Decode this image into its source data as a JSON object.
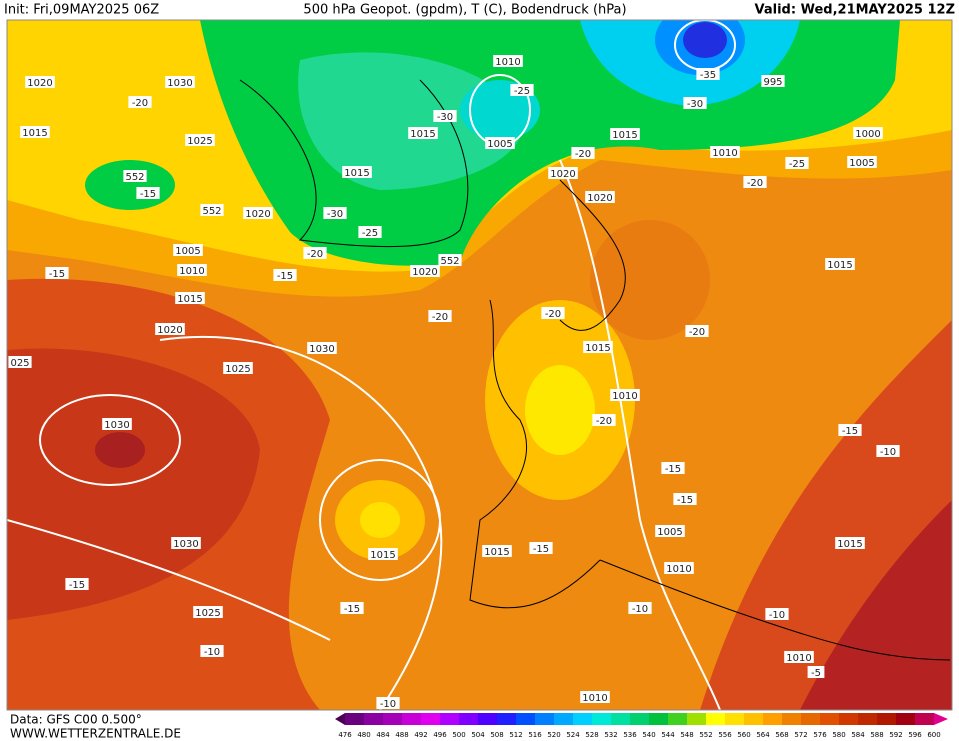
{
  "header": {
    "init": "Init: Fri,09MAY2025 06Z",
    "title": "500 hPa Geopot. (gpdm), T (C), Bodendruck (hPa)",
    "valid": "Valid: Wed,21MAY2025 12Z"
  },
  "map": {
    "labels": [
      "1020",
      "1030",
      "1015",
      "-20",
      "1025",
      "552",
      "-15",
      "552",
      "1020",
      "-30",
      "1015",
      "-25",
      "1015",
      "-30",
      "1010",
      "-25",
      "1005",
      "-20",
      "1005",
      "1010",
      "-15",
      "-15",
      "1015",
      "1020",
      "1020",
      "552",
      "1015",
      "-35",
      "995",
      "-30",
      "1000",
      "1005",
      "1010",
      "-25",
      "-20",
      "-20",
      "1020",
      "1020",
      "1015",
      "-20",
      "-20",
      "-20",
      "1030",
      "1025",
      "025",
      "1015",
      "1010",
      "-20",
      "1030",
      "-15",
      "-10",
      "-15",
      "-15",
      "1005",
      "1015",
      "1015",
      "-15",
      "1030",
      "1015",
      "1010",
      "-15",
      "-15",
      "-10",
      "-10",
      "1025",
      "-10",
      "1010",
      "-5",
      "1010",
      "-10"
    ]
  },
  "footer": {
    "source": "Data: GFS C00 0.500°",
    "site": "WWW.WETTERZENTRALE.DE"
  },
  "colorbar": {
    "values": [
      476,
      480,
      484,
      488,
      492,
      496,
      500,
      504,
      508,
      512,
      516,
      520,
      524,
      528,
      532,
      536,
      540,
      544,
      548,
      552,
      556,
      560,
      564,
      568,
      572,
      576,
      580,
      584,
      588,
      592,
      596,
      600
    ],
    "colors": [
      "#4b0055",
      "#6a0080",
      "#8a00a0",
      "#a400b8",
      "#c800d8",
      "#e000f0",
      "#b000ff",
      "#8000ff",
      "#5000ff",
      "#2020ff",
      "#0050ff",
      "#0080ff",
      "#00a8ff",
      "#00d0ff",
      "#00e8d8",
      "#00e0a0",
      "#00d070",
      "#00c040",
      "#40d020",
      "#a0e000",
      "#ffff00",
      "#ffe000",
      "#ffc000",
      "#ffa000",
      "#f08000",
      "#e86800",
      "#e05000",
      "#d03800",
      "#c02800",
      "#b01800",
      "#a00010",
      "#c00050",
      "#e00090"
    ]
  }
}
